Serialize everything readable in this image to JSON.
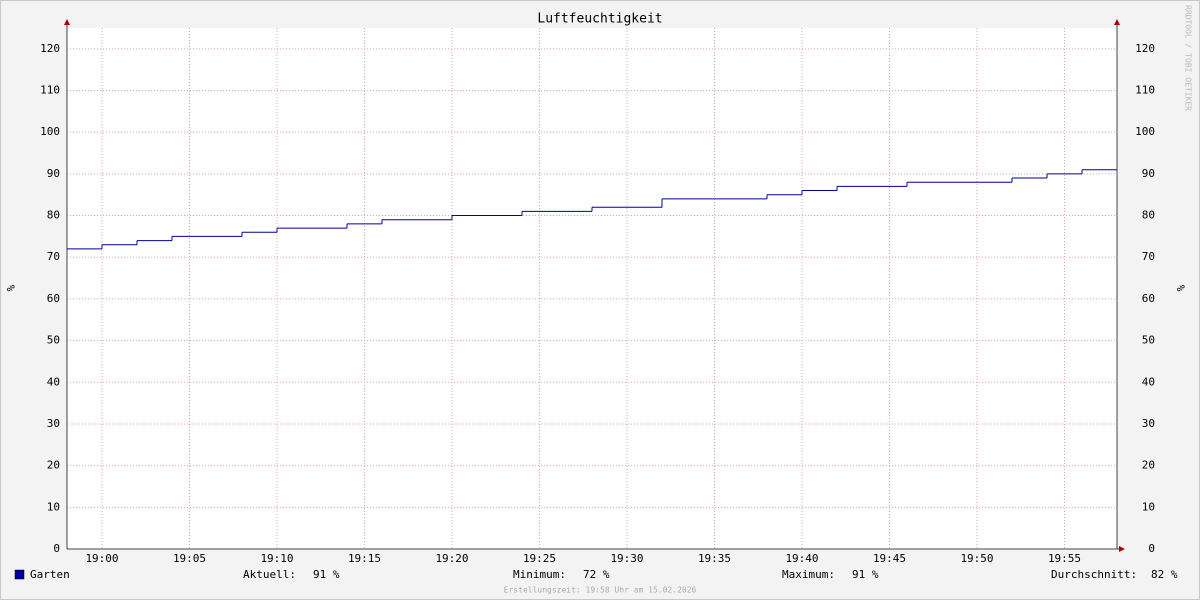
{
  "chart_data": {
    "type": "line",
    "step": "post",
    "title": "Luftfeuchtigkeit",
    "y_label": "%",
    "watermark": "RRDTOOL / TOBI OETIKER",
    "x": [
      "18:58",
      "19:00",
      "19:02",
      "19:04",
      "19:08",
      "19:10",
      "19:14",
      "19:16",
      "19:20",
      "19:24",
      "19:28",
      "19:32",
      "19:38",
      "19:40",
      "19:42",
      "19:46",
      "19:52",
      "19:54",
      "19:56"
    ],
    "xlim": [
      "18:58",
      "19:58"
    ],
    "xticks": [
      "19:00",
      "19:05",
      "19:10",
      "19:15",
      "19:20",
      "19:25",
      "19:30",
      "19:35",
      "19:40",
      "19:45",
      "19:50",
      "19:55"
    ],
    "series": [
      {
        "name": "Garten",
        "color": "#00009c",
        "values": [
          72,
          73,
          74,
          75,
          76,
          77,
          78,
          79,
          80,
          81,
          82,
          84,
          85,
          86,
          87,
          88,
          89,
          90,
          91
        ]
      }
    ],
    "ylim": [
      0,
      125
    ],
    "yticks": [
      0,
      10,
      20,
      30,
      40,
      50,
      60,
      70,
      80,
      90,
      100,
      110,
      120
    ],
    "grid": true,
    "stats": [
      {
        "label": "Aktuell:",
        "text": "91 %"
      },
      {
        "label": "Minimum:",
        "text": "72 %"
      },
      {
        "label": "Maximum:",
        "text": "91 %"
      },
      {
        "label": "Durchschnitt:",
        "text": "82 %"
      }
    ],
    "footer": "Erstellungszeit: 19:58 Uhr am 15.02.2026"
  }
}
